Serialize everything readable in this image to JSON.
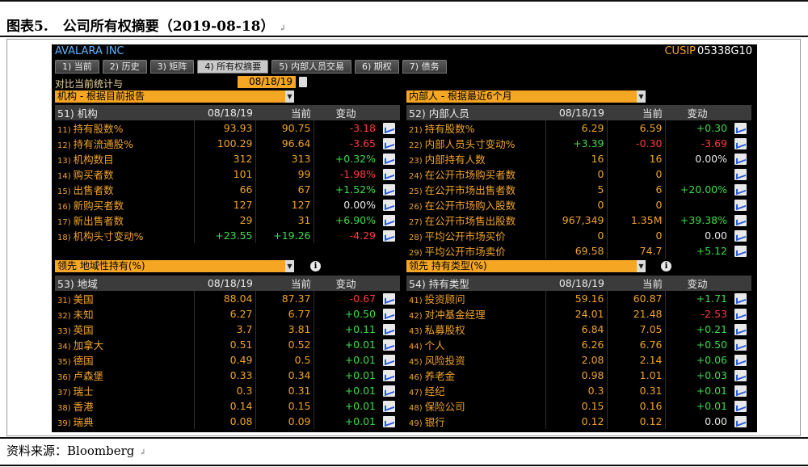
{
  "caption": {
    "label": "图表5.",
    "text": "公司所有权摘要（2019-08-18）",
    "mark": "↲"
  },
  "source": {
    "text": "资料来源：Bloomberg",
    "mark": "↲"
  },
  "terminal": {
    "company": "AVALARA INC",
    "cusip_label": "CUSIP",
    "cusip_value": "05338G10",
    "tabs": [
      "1) 当前",
      "2) 历史",
      "3) 矩阵",
      "4) 所有权摘要",
      "5) 内部人员交易",
      "6) 期权",
      "7) 债务"
    ],
    "active_tab": 3,
    "compare_label": "对比当前统计与",
    "compare_date": "08/18/19"
  },
  "tl": {
    "dropdown": "机构 - 根据目前报告",
    "header": [
      "51) 机构",
      "08/18/19",
      "当前",
      "变动"
    ],
    "rows": [
      {
        "ix": "11)",
        "label": "持有股数%",
        "a": "93.93",
        "b": "90.75",
        "c": "-3.18",
        "cs": "neg"
      },
      {
        "ix": "12)",
        "label": "持有流通股%",
        "a": "100.29",
        "b": "96.64",
        "c": "-3.65",
        "cs": "neg"
      },
      {
        "ix": "13)",
        "label": "机构数目",
        "a": "312",
        "b": "313",
        "c": "+0.32%",
        "cs": "pos"
      },
      {
        "ix": "14)",
        "label": "购买者数",
        "a": "101",
        "b": "99",
        "c": "-1.98%",
        "cs": "neg"
      },
      {
        "ix": "15)",
        "label": "出售者数",
        "a": "66",
        "b": "67",
        "c": "+1.52%",
        "cs": "pos"
      },
      {
        "ix": "16)",
        "label": "新购买者数",
        "a": "127",
        "b": "127",
        "c": "0.00%",
        "cs": "z"
      },
      {
        "ix": "17)",
        "label": "新出售者数",
        "a": "29",
        "b": "31",
        "c": "+6.90%",
        "cs": "pos"
      },
      {
        "ix": "18)",
        "label": "机构头寸变动%",
        "a": "+23.55",
        "b": "+19.26",
        "c": "-4.29",
        "cs": "neg",
        "as": "pos",
        "bs": "pos"
      }
    ]
  },
  "tr": {
    "dropdown": "内部人 - 根据最近6个月",
    "header": [
      "52) 内部人员",
      "08/18/19",
      "当前",
      "变动"
    ],
    "rows": [
      {
        "ix": "21)",
        "label": "持有股数%",
        "a": "6.29",
        "b": "6.59",
        "c": "+0.30",
        "cs": "pos"
      },
      {
        "ix": "22)",
        "label": "内部人员头寸变动%",
        "a": "+3.39",
        "b": "-0.30",
        "c": "-3.69",
        "cs": "neg",
        "as": "pos",
        "bs": "neg"
      },
      {
        "ix": "23)",
        "label": "内部持有人数",
        "a": "16",
        "b": "16",
        "c": "0.00%",
        "cs": "z"
      },
      {
        "ix": "24)",
        "label": "在公开市场购买者数",
        "a": "0",
        "b": "0",
        "c": "",
        "cs": "z"
      },
      {
        "ix": "25)",
        "label": "在公开市场出售者数",
        "a": "5",
        "b": "6",
        "c": "+20.00%",
        "cs": "pos"
      },
      {
        "ix": "26)",
        "label": "在公开市场购入股数",
        "a": "0",
        "b": "0",
        "c": "",
        "cs": "z"
      },
      {
        "ix": "27)",
        "label": "在公开市场售出股数",
        "a": "967,349",
        "b": "1.35M",
        "c": "+39.38%",
        "cs": "pos"
      },
      {
        "ix": "28)",
        "label": "平均公开市场买价",
        "a": "0",
        "b": "0",
        "c": "0.00",
        "cs": "z"
      },
      {
        "ix": "29)",
        "label": "平均公开市场卖价",
        "a": "69.58",
        "b": "74.7",
        "c": "+5.12",
        "cs": "pos"
      }
    ]
  },
  "bl": {
    "dropdown": "领先 地域性持有(%)",
    "header": [
      "53) 地域",
      "08/18/19",
      "当前",
      "变动"
    ],
    "rows": [
      {
        "ix": "31)",
        "label": "美国",
        "a": "88.04",
        "b": "87.37",
        "c": "-0.67",
        "cs": "neg"
      },
      {
        "ix": "32)",
        "label": "未知",
        "a": "6.27",
        "b": "6.77",
        "c": "+0.50",
        "cs": "pos"
      },
      {
        "ix": "33)",
        "label": "英国",
        "a": "3.7",
        "b": "3.81",
        "c": "+0.11",
        "cs": "pos"
      },
      {
        "ix": "34)",
        "label": "加拿大",
        "a": "0.51",
        "b": "0.52",
        "c": "+0.01",
        "cs": "pos"
      },
      {
        "ix": "35)",
        "label": "德国",
        "a": "0.49",
        "b": "0.5",
        "c": "+0.01",
        "cs": "pos"
      },
      {
        "ix": "36)",
        "label": "卢森堡",
        "a": "0.33",
        "b": "0.34",
        "c": "+0.01",
        "cs": "pos"
      },
      {
        "ix": "37)",
        "label": "瑞士",
        "a": "0.3",
        "b": "0.31",
        "c": "+0.01",
        "cs": "pos"
      },
      {
        "ix": "38)",
        "label": "香港",
        "a": "0.14",
        "b": "0.15",
        "c": "+0.01",
        "cs": "pos"
      },
      {
        "ix": "39)",
        "label": "瑞典",
        "a": "0.08",
        "b": "0.09",
        "c": "+0.01",
        "cs": "pos"
      }
    ]
  },
  "br": {
    "dropdown": "领先 持有类型(%)",
    "header": [
      "54) 持有类型",
      "08/18/19",
      "当前",
      "变动"
    ],
    "rows": [
      {
        "ix": "41)",
        "label": "投资顾问",
        "a": "59.16",
        "b": "60.87",
        "c": "+1.71",
        "cs": "pos"
      },
      {
        "ix": "42)",
        "label": "对冲基金经理",
        "a": "24.01",
        "b": "21.48",
        "c": "-2.53",
        "cs": "neg"
      },
      {
        "ix": "43)",
        "label": "私募股权",
        "a": "6.84",
        "b": "7.05",
        "c": "+0.21",
        "cs": "pos"
      },
      {
        "ix": "44)",
        "label": "个人",
        "a": "6.26",
        "b": "6.76",
        "c": "+0.50",
        "cs": "pos"
      },
      {
        "ix": "45)",
        "label": "风险投资",
        "a": "2.08",
        "b": "2.14",
        "c": "+0.06",
        "cs": "pos"
      },
      {
        "ix": "46)",
        "label": "养老金",
        "a": "0.98",
        "b": "1.01",
        "c": "+0.03",
        "cs": "pos"
      },
      {
        "ix": "47)",
        "label": "经纪",
        "a": "0.3",
        "b": "0.31",
        "c": "+0.01",
        "cs": "pos"
      },
      {
        "ix": "48)",
        "label": "保险公司",
        "a": "0.15",
        "b": "0.16",
        "c": "+0.01",
        "cs": "pos"
      },
      {
        "ix": "49)",
        "label": "银行",
        "a": "0.12",
        "b": "0.12",
        "c": "0.00",
        "cs": "z"
      }
    ]
  },
  "colors": {
    "terminal_bg": "#000000",
    "amber": "#f0a32b",
    "positive": "#3ddc4a",
    "negative": "#ff3b3b",
    "header_bg": "#3b3b3b",
    "dropdown_bg": "#f5a623",
    "company": "#5fb5ff"
  }
}
